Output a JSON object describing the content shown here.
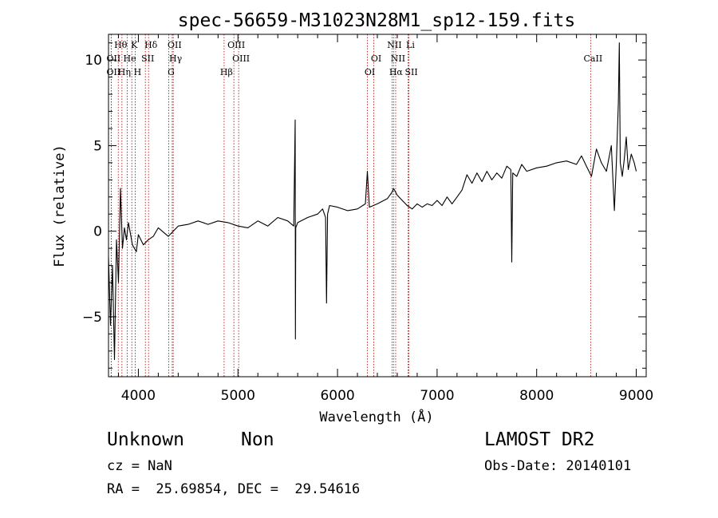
{
  "chart_data": {
    "type": "line",
    "title": "spec-56659-M31023N28M1_sp12-159.fits",
    "xlabel": "Wavelength (Å)",
    "ylabel": "Flux (relative)",
    "xlim": [
      3700,
      9100
    ],
    "ylim": [
      -8.5,
      11.5
    ],
    "xticks": [
      4000,
      5000,
      6000,
      7000,
      8000,
      9000
    ],
    "yticks": [
      -5,
      0,
      5,
      10
    ],
    "grid": false,
    "legend": "none",
    "series": [
      {
        "color": "#000000",
        "x": [
          3700,
          3720,
          3740,
          3760,
          3780,
          3800,
          3820,
          3840,
          3860,
          3880,
          3900,
          3940,
          3980,
          4000,
          4050,
          4100,
          4150,
          4200,
          4300,
          4400,
          4500,
          4600,
          4700,
          4800,
          4900,
          5000,
          5100,
          5200,
          5300,
          5400,
          5500,
          5560,
          5575,
          5577,
          5580,
          5600,
          5700,
          5800,
          5850,
          5880,
          5890,
          5900,
          5920,
          6000,
          6100,
          6200,
          6280,
          6300,
          6320,
          6400,
          6500,
          6550,
          6563,
          6600,
          6650,
          6700,
          6750,
          6800,
          6850,
          6900,
          6950,
          7000,
          7050,
          7100,
          7150,
          7200,
          7250,
          7300,
          7350,
          7400,
          7450,
          7500,
          7550,
          7600,
          7650,
          7700,
          7740,
          7750,
          7760,
          7800,
          7850,
          7900,
          8000,
          8100,
          8200,
          8300,
          8400,
          8450,
          8500,
          8550,
          8600,
          8650,
          8700,
          8750,
          8780,
          8800,
          8820,
          8830,
          8840,
          8860,
          8880,
          8900,
          8920,
          8950,
          8980,
          9000
        ],
        "y": [
          -1.5,
          -5.5,
          -2.0,
          -7.5,
          -0.5,
          -3.0,
          2.5,
          -1.0,
          0.2,
          -0.5,
          0.5,
          -0.8,
          -1.2,
          -0.2,
          -0.8,
          -0.5,
          -0.3,
          0.2,
          -0.3,
          0.3,
          0.4,
          0.6,
          0.4,
          0.6,
          0.5,
          0.3,
          0.2,
          0.6,
          0.3,
          0.8,
          0.6,
          0.3,
          6.5,
          -6.3,
          0.2,
          0.5,
          0.8,
          1.0,
          1.3,
          0.8,
          -4.2,
          1.0,
          1.5,
          1.4,
          1.2,
          1.3,
          1.6,
          3.5,
          1.4,
          1.6,
          1.9,
          2.3,
          2.5,
          2.1,
          1.8,
          1.5,
          1.3,
          1.6,
          1.4,
          1.6,
          1.5,
          1.8,
          1.5,
          2.0,
          1.6,
          2.0,
          2.4,
          3.3,
          2.8,
          3.4,
          2.9,
          3.5,
          3.0,
          3.4,
          3.1,
          3.8,
          3.6,
          -1.8,
          3.4,
          3.2,
          3.9,
          3.5,
          3.7,
          3.8,
          4.0,
          4.1,
          3.9,
          4.4,
          3.8,
          3.2,
          4.8,
          4.0,
          3.5,
          5.0,
          1.2,
          4.0,
          7.5,
          11.0,
          4.0,
          3.2,
          4.2,
          5.5,
          3.6,
          4.5,
          4.0,
          3.5
        ]
      }
    ],
    "spectral_lines": [
      {
        "label": "Hθ",
        "x": 3798,
        "row": 0
      },
      {
        "label": "K",
        "x": 3934,
        "row": 0
      },
      {
        "label": "Hδ",
        "x": 4102,
        "row": 0
      },
      {
        "label": "OII",
        "x": 4340,
        "row": 0
      },
      {
        "label": "OIII",
        "x": 4959,
        "row": 0
      },
      {
        "label": "NII",
        "x": 6548,
        "row": 0
      },
      {
        "label": "Li",
        "x": 6708,
        "row": 0
      },
      {
        "label": "OII",
        "x": 3727,
        "row": 1
      },
      {
        "label": "He",
        "x": 3889,
        "row": 1
      },
      {
        "label": "SII",
        "x": 4070,
        "row": 1
      },
      {
        "label": "Hγ",
        "x": 4350,
        "row": 1
      },
      {
        "label": "OIII",
        "x": 5007,
        "row": 1
      },
      {
        "label": "OI",
        "x": 6364,
        "row": 1
      },
      {
        "label": "NII",
        "x": 6584,
        "row": 1
      },
      {
        "label": "CaII",
        "x": 8542,
        "row": 1
      },
      {
        "label": "OII",
        "x": 3727,
        "row": 2
      },
      {
        "label": "Hη",
        "x": 3835,
        "row": 2
      },
      {
        "label": "H",
        "x": 3968,
        "row": 2
      },
      {
        "label": "G",
        "x": 4305,
        "row": 2
      },
      {
        "label": "Hβ",
        "x": 4861,
        "row": 2
      },
      {
        "label": "OI",
        "x": 6300,
        "row": 2
      },
      {
        "label": "Hα",
        "x": 6563,
        "row": 2
      },
      {
        "label": "SII",
        "x": 6717,
        "row": 2
      }
    ],
    "line_color": "#b00000"
  },
  "info": {
    "object_class": "Unknown",
    "subclass": "Non",
    "survey": "LAMOST DR2",
    "redshift": "cz = NaN",
    "obs_date": "Obs-Date: 20140101",
    "coords": "RA =  25.69854, DEC =  29.54616"
  }
}
